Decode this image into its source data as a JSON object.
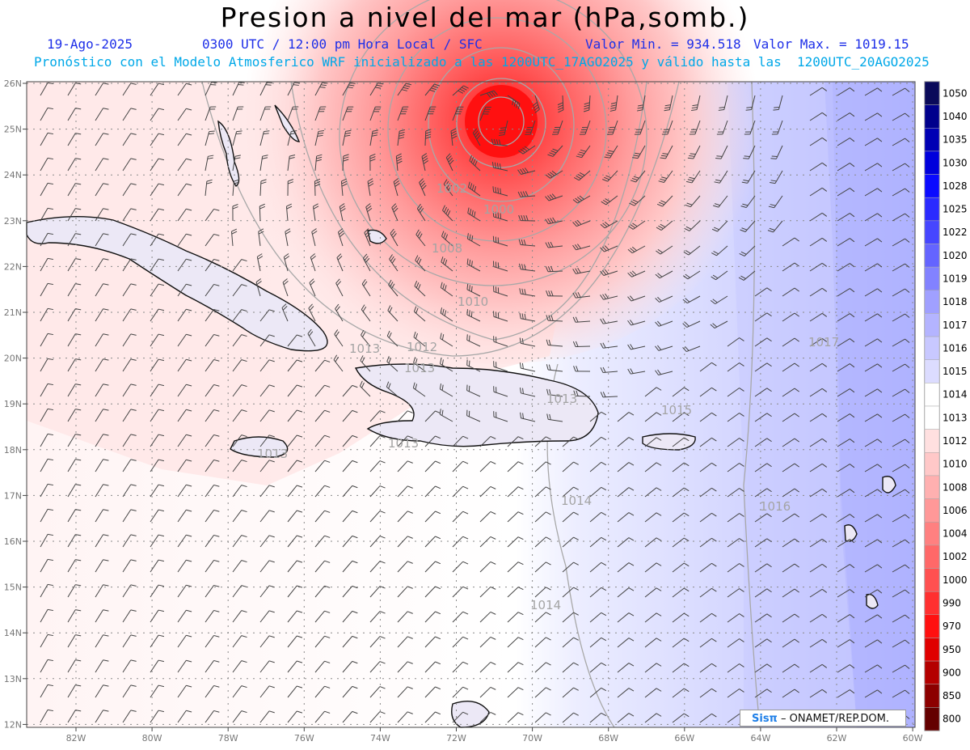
{
  "header": {
    "title": "Presion a nivel del mar (hPa,somb.)",
    "date": "19-Ago-2025",
    "time": "0300 UTC / 12:00 pm Hora Local / SFC",
    "min_label": "Valor Min. = 934.518",
    "max_label": "Valor Max. = 1019.15",
    "model_line": "Pronóstico con el Modelo Atmosferico WRF inicializado a las 1200UTC_17AGO2025 y válido hasta las  1200UTC_20AGO2025"
  },
  "map": {
    "lon_labels": [
      "82W",
      "80W",
      "78W",
      "76W",
      "74W",
      "72W",
      "70W",
      "68W",
      "66W",
      "64W",
      "62W",
      "60W"
    ],
    "lat_labels": [
      "26N",
      "25N",
      "24N",
      "23N",
      "22N",
      "21N",
      "20N",
      "19N",
      "18N",
      "17N",
      "16N",
      "15N",
      "14N",
      "13N",
      "12N"
    ],
    "isobar_labels": [
      "1002",
      "1000",
      "1008",
      "1010",
      "1012",
      "1013",
      "1013",
      "1013",
      "1013",
      "1013",
      "1015",
      "1014",
      "1014",
      "1016",
      "1017"
    ]
  },
  "colorbar": {
    "levels": [
      "1050",
      "1040",
      "1035",
      "1030",
      "1028",
      "1025",
      "1022",
      "1020",
      "1019",
      "1018",
      "1017",
      "1016",
      "1015",
      "1014",
      "1013",
      "1012",
      "1010",
      "1008",
      "1006",
      "1004",
      "1002",
      "1000",
      "990",
      "970",
      "950",
      "900",
      "850",
      "800"
    ],
    "colors": [
      "#0a0a5a",
      "#00008c",
      "#0000b4",
      "#0000dc",
      "#0a0aff",
      "#2a2aff",
      "#4646ff",
      "#6464ff",
      "#8282ff",
      "#a0a0ff",
      "#b4b4ff",
      "#c8c8ff",
      "#dcdcff",
      "#ffffff",
      "#ffffff",
      "#ffe0e0",
      "#ffc8c8",
      "#ffb0b0",
      "#ff9898",
      "#ff8080",
      "#ff6868",
      "#ff5050",
      "#ff3030",
      "#ff1010",
      "#e00000",
      "#b40000",
      "#8c0000",
      "#640000"
    ]
  },
  "credit": {
    "logo": "Sisπ",
    "text": "– ONAMET/REP.DOM."
  }
}
